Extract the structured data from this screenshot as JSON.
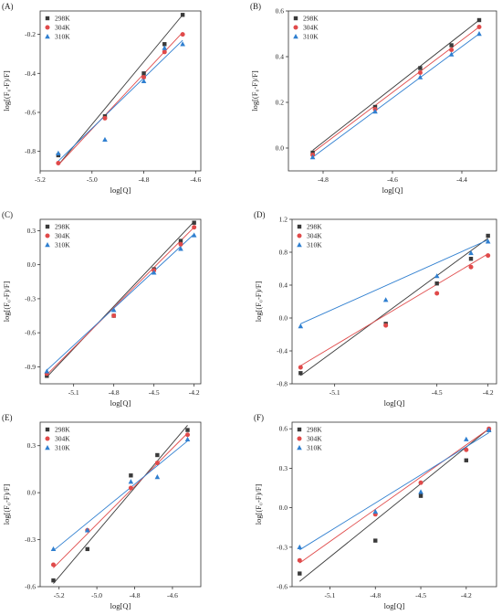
{
  "figure": {
    "series_styles": [
      {
        "name": "298K",
        "color": "#3a3a3a",
        "marker": "square"
      },
      {
        "name": "304K",
        "color": "#e04a4a",
        "marker": "circle"
      },
      {
        "name": "310K",
        "color": "#2f7fd0",
        "marker": "triangle"
      }
    ]
  },
  "chart_data": [
    {
      "type": "scatter",
      "panel": "(A)",
      "xlabel": "log[Q]",
      "ylabel": "log[(F₀-F)/F]",
      "xlim": [
        -5.2,
        -4.58
      ],
      "ylim": [
        -0.9,
        -0.08
      ],
      "xticks": [
        -5.2,
        -5.0,
        -4.8,
        -4.6
      ],
      "xtick_labels": [
        "-5.2",
        "-5.0",
        "-4.8",
        "-4.6"
      ],
      "yticks": [
        -0.8,
        -0.6,
        -0.4,
        -0.2
      ],
      "ytick_labels": [
        "-0.8",
        "-0.6",
        "-0.4",
        "-0.2"
      ],
      "legend_position": "top-left",
      "series": [
        {
          "name": "298K",
          "x": [
            -5.13,
            -4.95,
            -4.8,
            -4.72,
            -4.65
          ],
          "y": [
            -0.82,
            -0.62,
            -0.4,
            -0.25,
            -0.1
          ]
        },
        {
          "name": "304K",
          "x": [
            -5.13,
            -4.95,
            -4.8,
            -4.72,
            -4.65
          ],
          "y": [
            -0.86,
            -0.63,
            -0.42,
            -0.29,
            -0.2
          ]
        },
        {
          "name": "310K",
          "x": [
            -5.13,
            -4.95,
            -4.8,
            -4.72,
            -4.65
          ],
          "y": [
            -0.81,
            -0.74,
            -0.44,
            -0.27,
            -0.25
          ]
        }
      ],
      "fits": [
        {
          "name": "298K",
          "x": [
            -5.13,
            -4.65
          ],
          "y": [
            -0.87,
            -0.1
          ]
        },
        {
          "name": "304K",
          "x": [
            -5.13,
            -4.65
          ],
          "y": [
            -0.87,
            -0.19
          ]
        },
        {
          "name": "310K",
          "x": [
            -5.13,
            -4.65
          ],
          "y": [
            -0.85,
            -0.23
          ]
        }
      ]
    },
    {
      "type": "scatter",
      "panel": "(B)",
      "xlabel": "log[Q]",
      "ylabel": "log[(F₀-F)/F]",
      "xlim": [
        -4.9,
        -4.3
      ],
      "ylim": [
        -0.1,
        0.6
      ],
      "xticks": [
        -4.8,
        -4.6,
        -4.4
      ],
      "xtick_labels": [
        "-4.8",
        "-4.6",
        "-4.4"
      ],
      "yticks": [
        0.0,
        0.2,
        0.4,
        0.6
      ],
      "ytick_labels": [
        "0.0",
        "0.2",
        "0.4",
        "0.6"
      ],
      "legend_position": "top-left",
      "series": [
        {
          "name": "298K",
          "x": [
            -4.83,
            -4.65,
            -4.52,
            -4.43,
            -4.35
          ],
          "y": [
            -0.02,
            0.18,
            0.35,
            0.45,
            0.56
          ]
        },
        {
          "name": "304K",
          "x": [
            -4.83,
            -4.65,
            -4.52,
            -4.43,
            -4.35
          ],
          "y": [
            -0.03,
            0.17,
            0.33,
            0.43,
            0.53
          ]
        },
        {
          "name": "310K",
          "x": [
            -4.83,
            -4.65,
            -4.52,
            -4.43,
            -4.35
          ],
          "y": [
            -0.04,
            0.16,
            0.31,
            0.41,
            0.5
          ]
        }
      ],
      "fits": [
        {
          "name": "298K",
          "x": [
            -4.83,
            -4.35
          ],
          "y": [
            -0.01,
            0.56
          ]
        },
        {
          "name": "304K",
          "x": [
            -4.83,
            -4.35
          ],
          "y": [
            -0.02,
            0.53
          ]
        },
        {
          "name": "310K",
          "x": [
            -4.83,
            -4.35
          ],
          "y": [
            -0.04,
            0.5
          ]
        }
      ]
    },
    {
      "type": "scatter",
      "panel": "(C)",
      "xlabel": "log[Q]",
      "ylabel": "log[(F₀-F)/F]",
      "xlim": [
        -5.35,
        -4.15
      ],
      "ylim": [
        -1.05,
        0.4
      ],
      "xticks": [
        -5.1,
        -4.8,
        -4.5,
        -4.2
      ],
      "xtick_labels": [
        "-5.1",
        "-4.8",
        "-4.5",
        "-4.2"
      ],
      "yticks": [
        -0.9,
        -0.6,
        -0.3,
        0.0,
        0.3
      ],
      "ytick_labels": [
        "-0.9",
        "-0.6",
        "-0.3",
        "0.0",
        "0.3"
      ],
      "legend_position": "top-left",
      "series": [
        {
          "name": "298K",
          "x": [
            -5.3,
            -4.8,
            -4.5,
            -4.3,
            -4.2
          ],
          "y": [
            -0.98,
            -0.45,
            -0.04,
            0.21,
            0.37
          ]
        },
        {
          "name": "304K",
          "x": [
            -5.3,
            -4.8,
            -4.5,
            -4.3,
            -4.2
          ],
          "y": [
            -0.96,
            -0.45,
            -0.05,
            0.18,
            0.33
          ]
        },
        {
          "name": "310K",
          "x": [
            -5.3,
            -4.8,
            -4.5,
            -4.3,
            -4.2
          ],
          "y": [
            -0.94,
            -0.4,
            -0.07,
            0.14,
            0.26
          ]
        }
      ],
      "fits": [
        {
          "name": "298K",
          "x": [
            -5.3,
            -4.2
          ],
          "y": [
            -0.99,
            0.38
          ]
        },
        {
          "name": "304K",
          "x": [
            -5.3,
            -4.2
          ],
          "y": [
            -0.97,
            0.33
          ]
        },
        {
          "name": "310K",
          "x": [
            -5.3,
            -4.2
          ],
          "y": [
            -0.93,
            0.27
          ]
        }
      ]
    },
    {
      "type": "scatter",
      "panel": "(D)",
      "xlabel": "log[Q]",
      "ylabel": "log[(F₀-F)/F]",
      "xlim": [
        -5.35,
        -4.15
      ],
      "ylim": [
        -0.8,
        1.2
      ],
      "xticks": [
        -5.1,
        -4.5,
        -4.2
      ],
      "xtick_labels": [
        "-5.1",
        "-4.5",
        "-4.2"
      ],
      "yticks": [
        -0.8,
        -0.4,
        0.0,
        0.4,
        0.8,
        1.2
      ],
      "ytick_labels": [
        "-0.8",
        "-0.4",
        "0.0",
        "0.4",
        "0.8",
        "1.2"
      ],
      "legend_position": "top-left",
      "series": [
        {
          "name": "298K",
          "x": [
            -5.3,
            -4.8,
            -4.5,
            -4.3,
            -4.2
          ],
          "y": [
            -0.67,
            -0.07,
            0.42,
            0.72,
            1.0
          ]
        },
        {
          "name": "304K",
          "x": [
            -5.3,
            -4.8,
            -4.5,
            -4.3,
            -4.2
          ],
          "y": [
            -0.6,
            -0.09,
            0.3,
            0.62,
            0.76
          ]
        },
        {
          "name": "310K",
          "x": [
            -5.3,
            -4.8,
            -4.5,
            -4.3,
            -4.2
          ],
          "y": [
            -0.1,
            0.22,
            0.51,
            0.79,
            0.93
          ]
        }
      ],
      "fits": [
        {
          "name": "298K",
          "x": [
            -5.3,
            -4.2
          ],
          "y": [
            -0.7,
            0.97
          ]
        },
        {
          "name": "304K",
          "x": [
            -5.3,
            -4.2
          ],
          "y": [
            -0.58,
            0.78
          ]
        },
        {
          "name": "310K",
          "x": [
            -5.3,
            -4.2
          ],
          "y": [
            -0.07,
            0.95
          ]
        }
      ]
    },
    {
      "type": "scatter",
      "panel": "(E)",
      "xlabel": "log[Q]",
      "ylabel": "log[(F₀-F)/F]",
      "xlim": [
        -5.3,
        -4.45
      ],
      "ylim": [
        -0.6,
        0.45
      ],
      "xticks": [
        -5.2,
        -5.0,
        -4.8,
        -4.6
      ],
      "xtick_labels": [
        "-5.2",
        "-5.0",
        "-4.8",
        "-4.6"
      ],
      "yticks": [
        -0.6,
        -0.3,
        0.0,
        0.3
      ],
      "ytick_labels": [
        "-0.6",
        "-0.3",
        "0.0",
        "0.3"
      ],
      "legend_position": "top-left",
      "series": [
        {
          "name": "298K",
          "x": [
            -5.23,
            -5.05,
            -4.82,
            -4.68,
            -4.52
          ],
          "y": [
            -0.56,
            -0.36,
            0.11,
            0.24,
            0.4
          ]
        },
        {
          "name": "304K",
          "x": [
            -5.23,
            -5.05,
            -4.82,
            -4.68,
            -4.52
          ],
          "y": [
            -0.46,
            -0.24,
            0.03,
            0.19,
            0.37
          ]
        },
        {
          "name": "310K",
          "x": [
            -5.23,
            -5.05,
            -4.82,
            -4.68,
            -4.52
          ],
          "y": [
            -0.36,
            -0.24,
            0.07,
            0.1,
            0.34
          ]
        }
      ],
      "fits": [
        {
          "name": "298K",
          "x": [
            -5.23,
            -4.52
          ],
          "y": [
            -0.58,
            0.43
          ]
        },
        {
          "name": "304K",
          "x": [
            -5.23,
            -4.52
          ],
          "y": [
            -0.48,
            0.38
          ]
        },
        {
          "name": "310K",
          "x": [
            -5.23,
            -4.52
          ],
          "y": [
            -0.37,
            0.33
          ]
        }
      ]
    },
    {
      "type": "scatter",
      "panel": "(F)",
      "xlabel": "log[Q]",
      "ylabel": "log[(F₀-F)/F]",
      "xlim": [
        -5.35,
        -4.0
      ],
      "ylim": [
        -0.6,
        0.65
      ],
      "xticks": [
        -5.1,
        -4.8,
        -4.5,
        -4.2
      ],
      "xtick_labels": [
        "-5.1",
        "-4.8",
        "-4.5",
        "-4.2"
      ],
      "yticks": [
        -0.6,
        -0.3,
        0.0,
        0.3,
        0.6
      ],
      "ytick_labels": [
        "-0.6",
        "-0.3",
        "0.0",
        "0.3",
        "0.6"
      ],
      "legend_position": "top-left",
      "series": [
        {
          "name": "298K",
          "x": [
            -5.3,
            -4.8,
            -4.5,
            -4.2,
            -4.05
          ],
          "y": [
            -0.5,
            -0.25,
            0.09,
            0.36,
            0.59
          ]
        },
        {
          "name": "304K",
          "x": [
            -5.3,
            -4.8,
            -4.5,
            -4.2,
            -4.05
          ],
          "y": [
            -0.4,
            -0.05,
            0.19,
            0.44,
            0.6
          ]
        },
        {
          "name": "310K",
          "x": [
            -5.3,
            -4.8,
            -4.5,
            -4.2,
            -4.05
          ],
          "y": [
            -0.3,
            -0.03,
            0.12,
            0.52,
            0.59
          ]
        }
      ],
      "fits": [
        {
          "name": "298K",
          "x": [
            -5.3,
            -4.05
          ],
          "y": [
            -0.56,
            0.6
          ]
        },
        {
          "name": "304K",
          "x": [
            -5.3,
            -4.05
          ],
          "y": [
            -0.42,
            0.6
          ]
        },
        {
          "name": "310K",
          "x": [
            -5.3,
            -4.05
          ],
          "y": [
            -0.32,
            0.57
          ]
        }
      ]
    }
  ]
}
